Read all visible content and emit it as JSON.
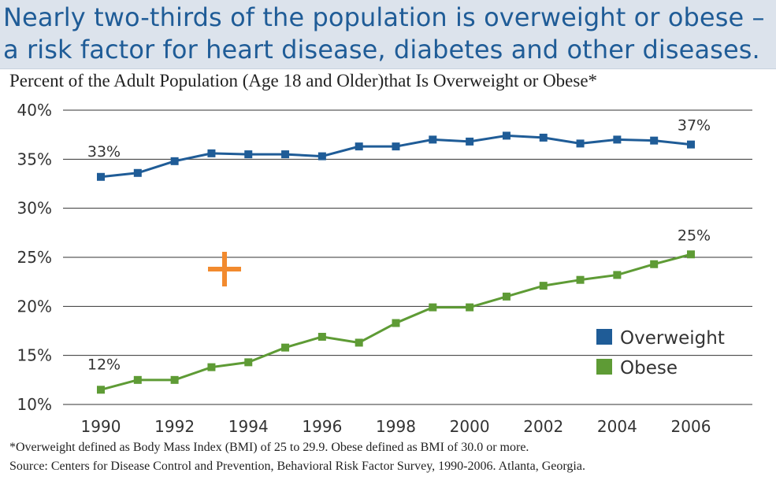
{
  "headline": {
    "line1": "Nearly two-thirds of the population is overweight or obese –",
    "line2": "a risk factor for heart disease, diabetes and other diseases."
  },
  "footnotes": {
    "definition": "*Overweight defined as Body Mass Index (BMI) of 25 to 29.9. Obese defined as BMI of 30.0 or more.",
    "source": "Source: Centers for Disease Control and Prevention, Behavioral Risk Factor Survey, 1990-2006. Atlanta, Georgia."
  },
  "colors": {
    "overweight": "#1f5c97",
    "obese": "#5e9b35",
    "headline_bg": "#dce3ec",
    "marker": "#f28a2e"
  },
  "icons": {
    "marker": "plus-icon"
  },
  "chart_data": {
    "type": "line",
    "title": "Percent of the Adult Population (Age 18 and Older)that Is Overweight or Obese*",
    "xlabel": "",
    "ylabel": "",
    "x": [
      1990,
      1991,
      1992,
      1993,
      1994,
      1995,
      1996,
      1997,
      1998,
      1999,
      2000,
      2001,
      2002,
      2003,
      2004,
      2005,
      2006
    ],
    "x_ticks": [
      "1990",
      "1992",
      "1994",
      "1996",
      "1998",
      "2000",
      "2002",
      "2004",
      "2006"
    ],
    "y_ticks": [
      "10%",
      "15%",
      "20%",
      "25%",
      "30%",
      "35%",
      "40%"
    ],
    "ylim": [
      10,
      40
    ],
    "grid": true,
    "legend_position": "bottom-right",
    "series": [
      {
        "name": "Overweight",
        "values": [
          33.2,
          33.6,
          34.8,
          35.6,
          35.5,
          35.5,
          35.3,
          36.3,
          36.3,
          37.0,
          36.8,
          37.4,
          37.2,
          36.6,
          37.0,
          36.9,
          36.5
        ],
        "start_label": "33%",
        "end_label": "37%"
      },
      {
        "name": "Obese",
        "values": [
          11.5,
          12.5,
          12.5,
          13.8,
          14.3,
          15.8,
          16.9,
          16.3,
          18.3,
          19.9,
          19.9,
          21.0,
          22.1,
          22.7,
          23.2,
          24.3,
          25.3
        ],
        "start_label": "12%",
        "end_label": "25%"
      }
    ]
  }
}
